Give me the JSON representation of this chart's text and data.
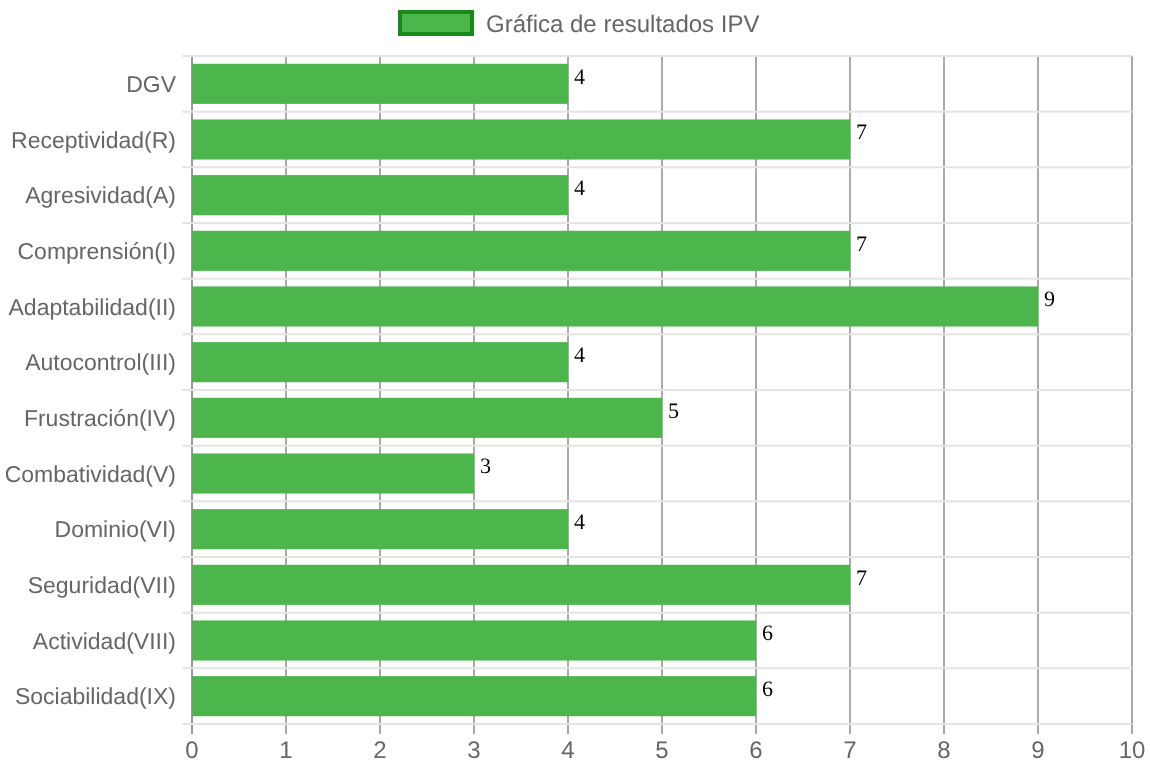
{
  "chart_data": {
    "type": "bar",
    "orientation": "horizontal",
    "categories": [
      "DGV",
      "Receptividad(R)",
      "Agresividad(A)",
      "Comprensión(I)",
      "Adaptabilidad(II)",
      "Autocontrol(III)",
      "Frustración(IV)",
      "Combatividad(V)",
      "Dominio(VI)",
      "Seguridad(VII)",
      "Actividad(VIII)",
      "Sociabilidad(IX)"
    ],
    "series": [
      {
        "name": "Gráfica de resultados IPV",
        "color": "#4cb64c",
        "values": [
          4,
          7,
          4,
          7,
          9,
          4,
          5,
          3,
          4,
          7,
          6,
          6
        ]
      }
    ],
    "xlim": [
      0,
      10
    ],
    "xticks": [
      0,
      1,
      2,
      3,
      4,
      5,
      6,
      7,
      8,
      9,
      10
    ],
    "grid": true,
    "legend": "top",
    "data_labels": true
  }
}
